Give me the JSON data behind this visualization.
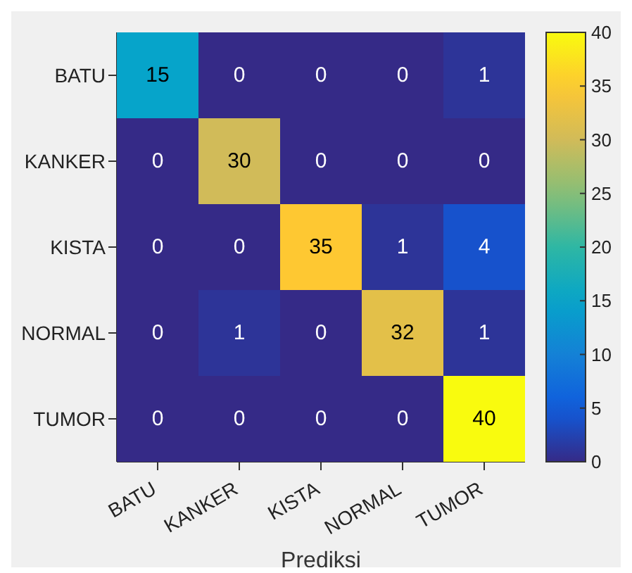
{
  "chart_data": {
    "type": "heatmap",
    "xlabel": "Prediksi",
    "categories": [
      "BATU",
      "KANKER",
      "KISTA",
      "NORMAL",
      "TUMOR"
    ],
    "y_categories": [
      "BATU",
      "KANKER",
      "KISTA",
      "NORMAL",
      "TUMOR"
    ],
    "cells": [
      [
        15,
        0,
        0,
        0,
        1
      ],
      [
        0,
        30,
        0,
        0,
        0
      ],
      [
        0,
        0,
        35,
        1,
        4
      ],
      [
        0,
        1,
        0,
        32,
        1
      ],
      [
        0,
        0,
        0,
        0,
        40
      ]
    ],
    "clim": [
      0,
      40
    ],
    "cticks": [
      0,
      5,
      10,
      15,
      20,
      25,
      30,
      35,
      40
    ],
    "data_labels": true
  }
}
